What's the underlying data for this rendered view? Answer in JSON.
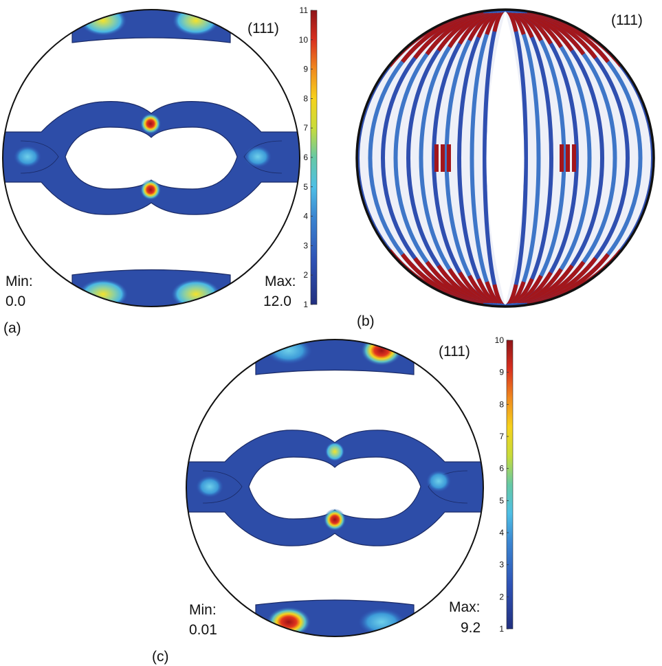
{
  "panels": [
    {
      "id": "a",
      "caption": "(a)",
      "plane": "(111)",
      "min_label": "Min:",
      "min_value": "0.0",
      "max_label": "Max:",
      "max_value": "12.0"
    },
    {
      "id": "b",
      "caption": "(b)",
      "plane": "(111)"
    },
    {
      "id": "c",
      "caption": "(c)",
      "plane": "(111)",
      "min_label": "Min:",
      "min_value": "0.01",
      "max_label": "Max:",
      "max_value": "9.2"
    }
  ],
  "colorbars": [
    {
      "for_panel": "a",
      "min": 1,
      "max": 11,
      "ticks": [
        "1",
        "2",
        "3",
        "4",
        "5",
        "6",
        "7",
        "8",
        "9",
        "10",
        "11"
      ]
    },
    {
      "for_panel": "c",
      "min": 1,
      "max": 10,
      "ticks": [
        "1",
        "2",
        "3",
        "4",
        "5",
        "6",
        "7",
        "8",
        "9",
        "10"
      ]
    }
  ],
  "colors": {
    "low": "#2a3c96",
    "mid": "#4fb7e0",
    "high": "#a8161c",
    "outline": "#111111"
  }
}
